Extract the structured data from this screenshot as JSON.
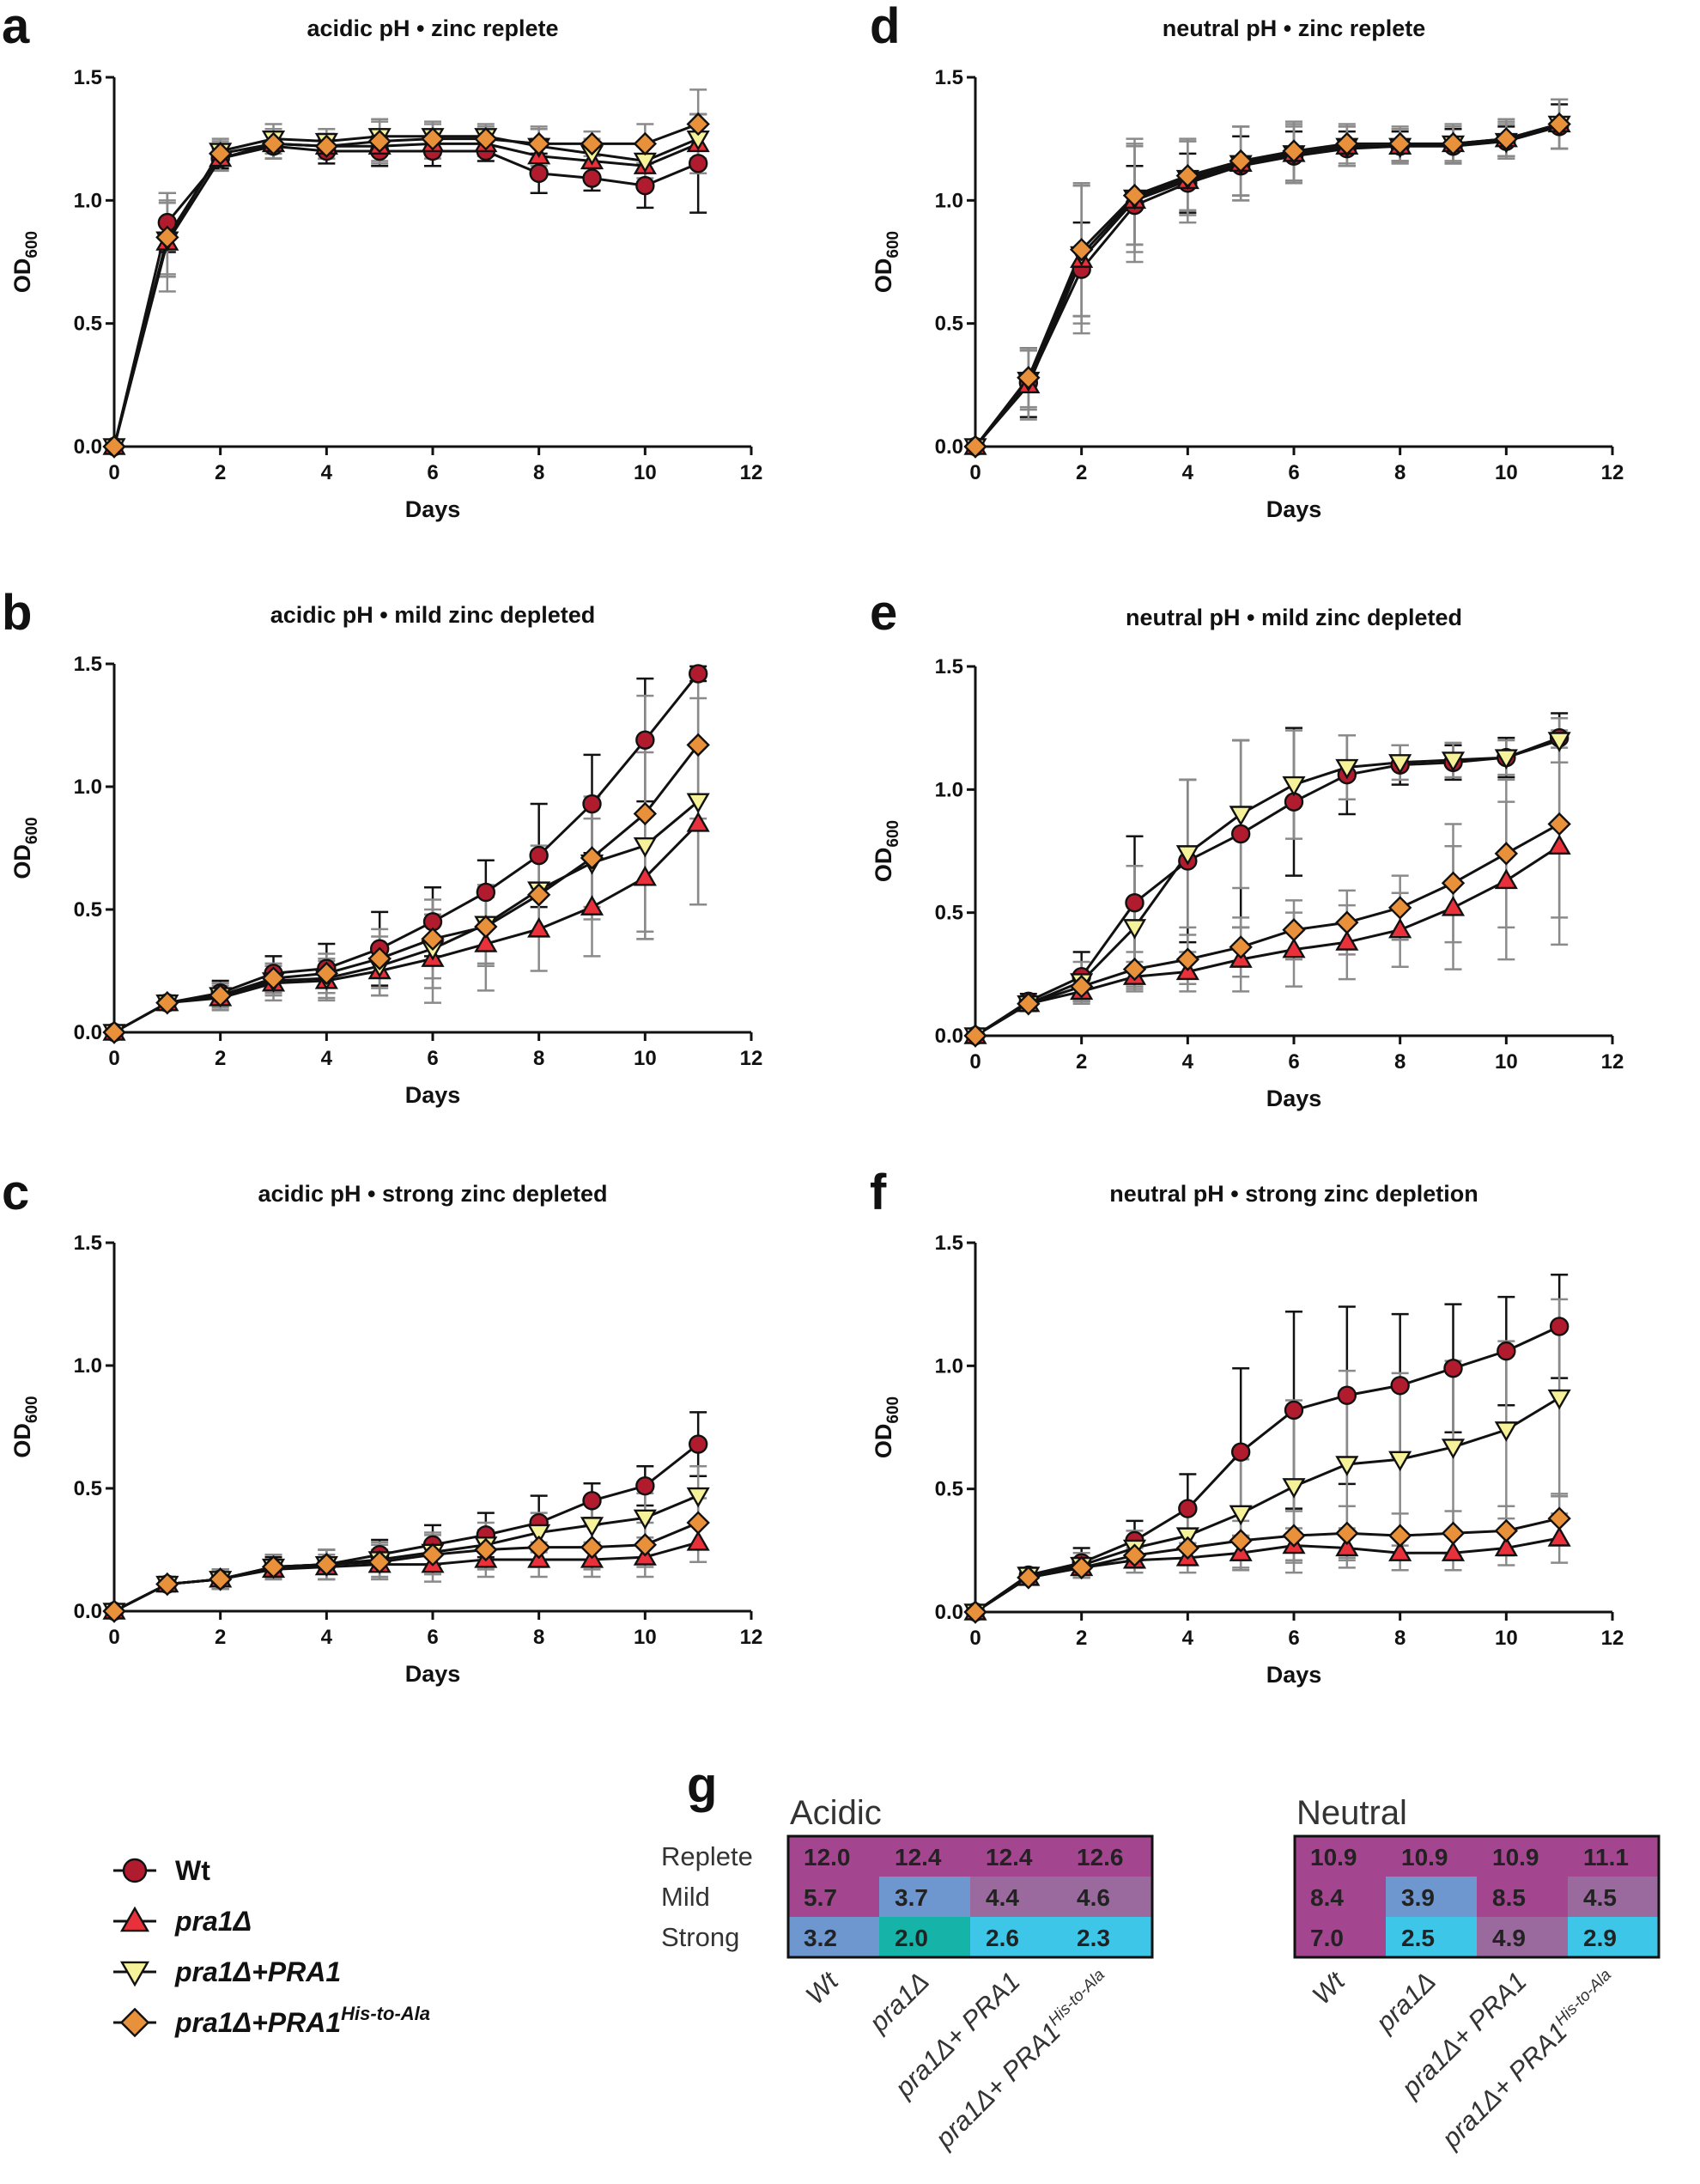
{
  "colors": {
    "axis": "#111111",
    "error_bar_grey": "#8a8a8a",
    "wt": "#b01c2e",
    "pra1": "#e8313a",
    "pra1_PRA1": "#f6f29a",
    "pra1_HisAla": "#e8913a",
    "heat_purple": "#a4468f",
    "heat_blue": "#6e96cf",
    "heat_cyan": "#3ec6e8",
    "heat_teal": "#16b3a8",
    "heat_mauve": "#9a6a9e"
  },
  "legend": {
    "items": [
      {
        "label": "Wt",
        "shape": "circle",
        "color": "#b01c2e"
      },
      {
        "label": "pra1Δ",
        "shape": "triangle-up",
        "color": "#e8313a"
      },
      {
        "label": "pra1Δ+PRA1",
        "shape": "triangle-down",
        "color": "#f6f29a"
      },
      {
        "label": "pra1Δ+PRA1",
        "sup": "His-to-Ala",
        "shape": "diamond",
        "color": "#e8913a"
      }
    ]
  },
  "chart_data": [
    {
      "panel": "a",
      "type": "line",
      "title": "acidic pH • zinc replete",
      "xlabel": "Days",
      "ylabel": "OD600",
      "xlim": [
        0,
        12
      ],
      "ylim": [
        0,
        1.5
      ],
      "xticks": [
        0,
        2,
        4,
        6,
        8,
        10,
        12
      ],
      "yticks": [
        "0.0",
        "0.5",
        "1.0",
        "1.5"
      ],
      "x": [
        0,
        1,
        2,
        3,
        4,
        5,
        6,
        7,
        8,
        9,
        10,
        11
      ],
      "series": [
        {
          "name": "Wt",
          "values": [
            0.0,
            0.91,
            1.17,
            1.22,
            1.2,
            1.2,
            1.2,
            1.2,
            1.11,
            1.09,
            1.06,
            1.15
          ],
          "err": [
            0.01,
            0.12,
            0.04,
            0.05,
            0.05,
            0.06,
            0.06,
            0.04,
            0.08,
            0.05,
            0.09,
            0.2
          ]
        },
        {
          "name": "pra1Δ",
          "values": [
            0.0,
            0.83,
            1.17,
            1.23,
            1.22,
            1.22,
            1.23,
            1.23,
            1.18,
            1.16,
            1.14,
            1.23
          ],
          "err": [
            0.01,
            0.2,
            0.05,
            0.06,
            0.05,
            0.07,
            0.06,
            0.05,
            0.07,
            0.06,
            0.08,
            0.12
          ]
        },
        {
          "name": "pra1Δ+PRA1",
          "values": [
            0.0,
            0.84,
            1.2,
            1.25,
            1.24,
            1.26,
            1.26,
            1.26,
            1.22,
            1.19,
            1.16,
            1.25
          ],
          "err": [
            0.01,
            0.15,
            0.05,
            0.06,
            0.05,
            0.07,
            0.06,
            0.05,
            0.08,
            0.06,
            0.07,
            0.1
          ]
        },
        {
          "name": "pra1Δ+PRA1His-to-Ala",
          "values": [
            0.0,
            0.85,
            1.19,
            1.23,
            1.22,
            1.24,
            1.25,
            1.25,
            1.23,
            1.23,
            1.23,
            1.31
          ],
          "err": [
            0.01,
            0.15,
            0.05,
            0.06,
            0.05,
            0.08,
            0.06,
            0.05,
            0.06,
            0.05,
            0.08,
            0.14
          ]
        }
      ]
    },
    {
      "panel": "b",
      "type": "line",
      "title": "acidic pH • mild zinc depleted",
      "xlabel": "Days",
      "ylabel": "OD600",
      "xlim": [
        0,
        12
      ],
      "ylim": [
        0,
        1.5
      ],
      "xticks": [
        0,
        2,
        4,
        6,
        8,
        10,
        12
      ],
      "yticks": [
        "0.0",
        "0.5",
        "1.0",
        "1.5"
      ],
      "x": [
        0,
        1,
        2,
        3,
        4,
        5,
        6,
        7,
        8,
        9,
        10,
        11
      ],
      "series": [
        {
          "name": "Wt",
          "values": [
            0.0,
            0.12,
            0.16,
            0.24,
            0.26,
            0.34,
            0.45,
            0.57,
            0.72,
            0.93,
            1.19,
            1.46
          ],
          "err": [
            0.01,
            0.03,
            0.05,
            0.07,
            0.1,
            0.15,
            0.14,
            0.13,
            0.21,
            0.2,
            0.25,
            0.03
          ]
        },
        {
          "name": "pra1Δ",
          "values": [
            0.0,
            0.12,
            0.14,
            0.2,
            0.21,
            0.25,
            0.3,
            0.36,
            0.42,
            0.51,
            0.63,
            0.85
          ],
          "err": [
            0.01,
            0.03,
            0.05,
            0.07,
            0.08,
            0.1,
            0.18,
            0.19,
            0.17,
            0.2,
            0.25,
            0.33
          ]
        },
        {
          "name": "pra1Δ+PRA1",
          "values": [
            0.0,
            0.12,
            0.15,
            0.21,
            0.22,
            0.27,
            0.34,
            0.44,
            0.58,
            0.69,
            0.76,
            0.94
          ],
          "err": [
            0.01,
            0.03,
            0.05,
            0.06,
            0.08,
            0.12,
            0.16,
            0.16,
            0.18,
            0.18,
            0.38,
            0.42
          ]
        },
        {
          "name": "pra1Δ+PRA1His-to-Ala",
          "values": [
            0.0,
            0.12,
            0.15,
            0.22,
            0.24,
            0.3,
            0.38,
            0.43,
            0.56,
            0.71,
            0.89,
            1.17
          ],
          "err": [
            0.01,
            0.03,
            0.05,
            0.06,
            0.08,
            0.12,
            0.16,
            0.16,
            0.15,
            0.25,
            0.48,
            0.3
          ]
        }
      ]
    },
    {
      "panel": "c",
      "type": "line",
      "title": "acidic pH • strong zinc depleted",
      "xlabel": "Days",
      "ylabel": "OD600",
      "xlim": [
        0,
        12
      ],
      "ylim": [
        0,
        1.5
      ],
      "xticks": [
        0,
        2,
        4,
        6,
        8,
        10,
        12
      ],
      "yticks": [
        "0.0",
        "0.5",
        "1.0",
        "1.5"
      ],
      "x": [
        0,
        1,
        2,
        3,
        4,
        5,
        6,
        7,
        8,
        9,
        10,
        11
      ],
      "series": [
        {
          "name": "Wt",
          "values": [
            0.0,
            0.11,
            0.13,
            0.18,
            0.19,
            0.23,
            0.27,
            0.31,
            0.36,
            0.45,
            0.51,
            0.68
          ],
          "err": [
            0.01,
            0.03,
            0.04,
            0.04,
            0.06,
            0.06,
            0.08,
            0.09,
            0.11,
            0.07,
            0.08,
            0.13
          ]
        },
        {
          "name": "pra1Δ",
          "values": [
            0.0,
            0.11,
            0.13,
            0.17,
            0.18,
            0.19,
            0.19,
            0.21,
            0.21,
            0.21,
            0.22,
            0.28
          ],
          "err": [
            0.01,
            0.03,
            0.04,
            0.04,
            0.05,
            0.06,
            0.07,
            0.07,
            0.07,
            0.07,
            0.08,
            0.08
          ]
        },
        {
          "name": "pra1Δ+PRA1",
          "values": [
            0.0,
            0.11,
            0.13,
            0.18,
            0.19,
            0.21,
            0.24,
            0.27,
            0.32,
            0.35,
            0.38,
            0.47
          ],
          "err": [
            0.01,
            0.03,
            0.04,
            0.05,
            0.06,
            0.07,
            0.08,
            0.09,
            0.08,
            0.09,
            0.1,
            0.12
          ]
        },
        {
          "name": "pra1Δ+PRA1His-to-Ala",
          "values": [
            0.0,
            0.11,
            0.13,
            0.18,
            0.19,
            0.2,
            0.23,
            0.25,
            0.26,
            0.26,
            0.27,
            0.36
          ],
          "err": [
            0.01,
            0.03,
            0.04,
            0.05,
            0.06,
            0.07,
            0.08,
            0.08,
            0.08,
            0.09,
            0.09,
            0.1
          ]
        }
      ]
    },
    {
      "panel": "d",
      "type": "line",
      "title": "neutral pH • zinc replete",
      "xlabel": "Days",
      "ylabel": "OD600",
      "xlim": [
        0,
        12
      ],
      "ylim": [
        0,
        1.5
      ],
      "xticks": [
        0,
        2,
        4,
        6,
        8,
        10,
        12
      ],
      "yticks": [
        "0.0",
        "0.5",
        "1.0",
        "1.5"
      ],
      "x": [
        0,
        1,
        2,
        3,
        4,
        5,
        6,
        7,
        8,
        9,
        10,
        11
      ],
      "series": [
        {
          "name": "Wt",
          "values": [
            0.0,
            0.26,
            0.72,
            0.98,
            1.07,
            1.14,
            1.18,
            1.21,
            1.22,
            1.22,
            1.24,
            1.3
          ],
          "err": [
            0.01,
            0.14,
            0.19,
            0.16,
            0.12,
            0.12,
            0.1,
            0.07,
            0.06,
            0.07,
            0.06,
            0.09
          ]
        },
        {
          "name": "pra1Δ",
          "values": [
            0.0,
            0.25,
            0.76,
            1.0,
            1.08,
            1.15,
            1.19,
            1.22,
            1.22,
            1.23,
            1.25,
            1.31
          ],
          "err": [
            0.01,
            0.14,
            0.3,
            0.25,
            0.17,
            0.15,
            0.12,
            0.08,
            0.07,
            0.07,
            0.07,
            0.1
          ]
        },
        {
          "name": "pra1Δ+PRA1",
          "values": [
            0.0,
            0.27,
            0.78,
            1.01,
            1.09,
            1.15,
            1.19,
            1.22,
            1.22,
            1.23,
            1.24,
            1.31
          ],
          "err": [
            0.01,
            0.12,
            0.28,
            0.22,
            0.15,
            0.15,
            0.11,
            0.08,
            0.07,
            0.07,
            0.07,
            0.1
          ]
        },
        {
          "name": "pra1Δ+PRA1His-to-Ala",
          "values": [
            0.0,
            0.28,
            0.8,
            1.02,
            1.1,
            1.16,
            1.2,
            1.23,
            1.23,
            1.23,
            1.25,
            1.31
          ],
          "err": [
            0.01,
            0.12,
            0.27,
            0.2,
            0.14,
            0.14,
            0.12,
            0.08,
            0.07,
            0.08,
            0.08,
            0.1
          ]
        }
      ]
    },
    {
      "panel": "e",
      "type": "line",
      "title": "neutral pH • mild zinc depleted",
      "xlabel": "Days",
      "ylabel": "OD600",
      "xlim": [
        0,
        12
      ],
      "ylim": [
        0,
        1.5
      ],
      "xticks": [
        0,
        2,
        4,
        6,
        8,
        10,
        12
      ],
      "yticks": [
        "0.0",
        "0.5",
        "1.0",
        "1.5"
      ],
      "x": [
        0,
        1,
        2,
        3,
        4,
        5,
        6,
        7,
        8,
        9,
        10,
        11
      ],
      "series": [
        {
          "name": "Wt",
          "values": [
            0.0,
            0.14,
            0.24,
            0.54,
            0.71,
            0.82,
            0.95,
            1.06,
            1.1,
            1.11,
            1.13,
            1.21
          ],
          "err": [
            0.01,
            0.03,
            0.1,
            0.27,
            0.33,
            0.38,
            0.3,
            0.16,
            0.08,
            0.07,
            0.08,
            0.1
          ]
        },
        {
          "name": "pra1Δ",
          "values": [
            0.0,
            0.13,
            0.18,
            0.24,
            0.26,
            0.31,
            0.35,
            0.38,
            0.43,
            0.52,
            0.63,
            0.77
          ],
          "err": [
            0.01,
            0.02,
            0.05,
            0.06,
            0.08,
            0.13,
            0.15,
            0.15,
            0.15,
            0.25,
            0.32,
            0.4
          ]
        },
        {
          "name": "pra1Δ+PRA1",
          "values": [
            0.0,
            0.13,
            0.22,
            0.44,
            0.74,
            0.9,
            1.02,
            1.09,
            1.11,
            1.12,
            1.13,
            1.2
          ],
          "err": [
            0.01,
            0.03,
            0.08,
            0.25,
            0.3,
            0.3,
            0.22,
            0.13,
            0.07,
            0.07,
            0.07,
            0.09
          ]
        },
        {
          "name": "pra1Δ+PRA1His-to-Ala",
          "values": [
            0.0,
            0.13,
            0.2,
            0.27,
            0.31,
            0.36,
            0.43,
            0.46,
            0.52,
            0.62,
            0.74,
            0.86
          ],
          "err": [
            0.01,
            0.02,
            0.05,
            0.07,
            0.1,
            0.12,
            0.12,
            0.13,
            0.13,
            0.24,
            0.3,
            0.38
          ]
        }
      ]
    },
    {
      "panel": "f",
      "type": "line",
      "title": "neutral pH • strong zinc depletion",
      "xlabel": "Days",
      "ylabel": "OD600",
      "xlim": [
        0,
        12
      ],
      "ylim": [
        0,
        1.5
      ],
      "xticks": [
        0,
        2,
        4,
        6,
        8,
        10,
        12
      ],
      "yticks": [
        "0.0",
        "0.5",
        "1.0",
        "1.5"
      ],
      "x": [
        0,
        1,
        2,
        3,
        4,
        5,
        6,
        7,
        8,
        9,
        10,
        11
      ],
      "series": [
        {
          "name": "Wt",
          "values": [
            0.0,
            0.15,
            0.2,
            0.29,
            0.42,
            0.65,
            0.82,
            0.88,
            0.92,
            0.99,
            1.06,
            1.16
          ],
          "err": [
            0.01,
            0.03,
            0.06,
            0.08,
            0.14,
            0.34,
            0.4,
            0.36,
            0.29,
            0.26,
            0.22,
            0.21
          ]
        },
        {
          "name": "pra1Δ",
          "values": [
            0.0,
            0.14,
            0.18,
            0.21,
            0.22,
            0.24,
            0.27,
            0.26,
            0.24,
            0.24,
            0.26,
            0.3
          ],
          "err": [
            0.01,
            0.02,
            0.04,
            0.05,
            0.06,
            0.07,
            0.07,
            0.08,
            0.07,
            0.07,
            0.07,
            0.1
          ]
        },
        {
          "name": "pra1Δ+PRA1",
          "values": [
            0.0,
            0.15,
            0.19,
            0.26,
            0.31,
            0.4,
            0.51,
            0.6,
            0.62,
            0.67,
            0.74,
            0.87
          ],
          "err": [
            0.01,
            0.03,
            0.05,
            0.07,
            0.1,
            0.22,
            0.35,
            0.38,
            0.35,
            0.35,
            0.36,
            0.4
          ]
        },
        {
          "name": "pra1Δ+PRA1His-to-Ala",
          "values": [
            0.0,
            0.14,
            0.18,
            0.23,
            0.26,
            0.29,
            0.31,
            0.32,
            0.31,
            0.32,
            0.33,
            0.38
          ],
          "err": [
            0.01,
            0.02,
            0.04,
            0.05,
            0.07,
            0.08,
            0.1,
            0.11,
            0.09,
            0.09,
            0.1,
            0.1
          ]
        }
      ]
    },
    {
      "panel": "g",
      "type": "heatmap",
      "row_labels": [
        "Replete",
        "Mild",
        "Strong"
      ],
      "column_labels": [
        "Wt",
        "pra1Δ",
        "pra1Δ+ PRA1",
        "pra1Δ+ PRA1His-to-Ala"
      ],
      "maps": [
        {
          "title": "Acidic",
          "values": [
            [
              "12.0",
              "12.4",
              "12.4",
              "12.6"
            ],
            [
              "5.7",
              "3.7",
              "4.4",
              "4.6"
            ],
            [
              "3.2",
              "2.0",
              "2.6",
              "2.3"
            ]
          ],
          "colors": [
            [
              "#a4468f",
              "#a4468f",
              "#a4468f",
              "#a4468f"
            ],
            [
              "#a4468f",
              "#6e96cf",
              "#9a6a9e",
              "#9a6a9e"
            ],
            [
              "#6e96cf",
              "#16b3a8",
              "#3ec6e8",
              "#3ec6e8"
            ]
          ]
        },
        {
          "title": "Neutral",
          "values": [
            [
              "10.9",
              "10.9",
              "10.9",
              "11.1"
            ],
            [
              "8.4",
              "3.9",
              "8.5",
              "4.5"
            ],
            [
              "7.0",
              "2.5",
              "4.9",
              "2.9"
            ]
          ],
          "colors": [
            [
              "#a4468f",
              "#a4468f",
              "#a4468f",
              "#a4468f"
            ],
            [
              "#a4468f",
              "#6e96cf",
              "#a4468f",
              "#9a6a9e"
            ],
            [
              "#a4468f",
              "#3ec6e8",
              "#9a6a9e",
              "#3ec6e8"
            ]
          ]
        }
      ]
    }
  ],
  "panel_g_letter": "g"
}
